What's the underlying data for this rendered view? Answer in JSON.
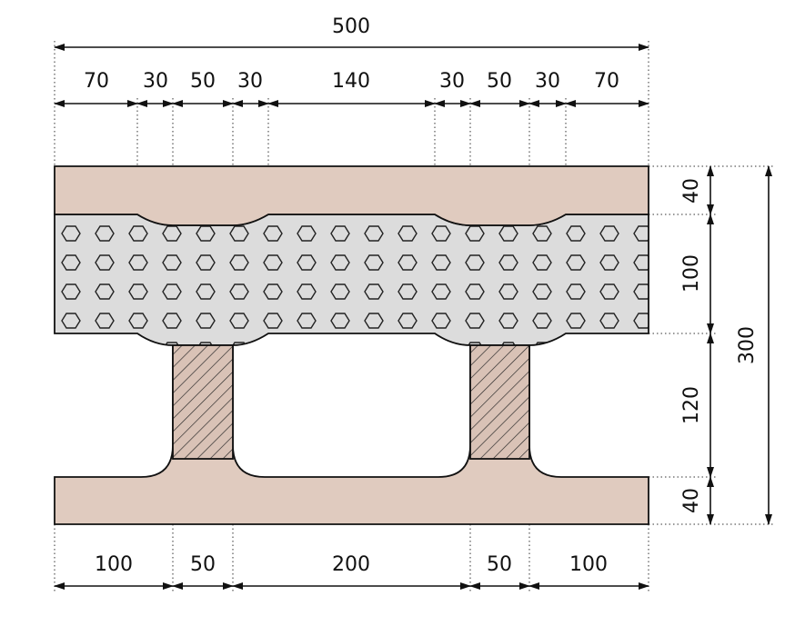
{
  "dimensions": {
    "total_width": 500,
    "top_segments": [
      70,
      30,
      50,
      30,
      140,
      30,
      50,
      30,
      70
    ],
    "bottom_segments": [
      100,
      50,
      200,
      50,
      100
    ],
    "right_segments": [
      40,
      100,
      120,
      40
    ],
    "total_height": 300
  }
}
